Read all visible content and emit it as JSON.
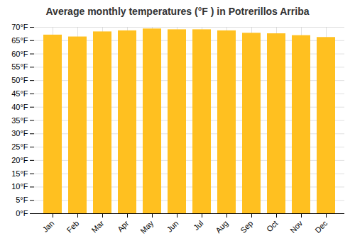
{
  "chart_data": {
    "type": "bar",
    "title": "Average monthly temperatures (°F ) in Potrerillos Arriba",
    "categories": [
      "Jan",
      "Feb",
      "Mar",
      "Apr",
      "May",
      "Jun",
      "Jul",
      "Aug",
      "Sep",
      "Oct",
      "Nov",
      "Dec"
    ],
    "values": [
      67.1,
      66.4,
      68.3,
      68.7,
      69.4,
      69.1,
      69.1,
      68.7,
      67.8,
      67.6,
      66.9,
      66.2
    ],
    "color": "#FFC020",
    "ylim": [
      0,
      70
    ],
    "yticks": [
      {
        "value": 0,
        "label": "0°F"
      },
      {
        "value": 5,
        "label": "5°F"
      },
      {
        "value": 10,
        "label": "10°F"
      },
      {
        "value": 15,
        "label": "15°F"
      },
      {
        "value": 20,
        "label": "20°F"
      },
      {
        "value": 25,
        "label": "25°F"
      },
      {
        "value": 30,
        "label": "30°F"
      },
      {
        "value": 35,
        "label": "35°F"
      },
      {
        "value": 40,
        "label": "40°F"
      },
      {
        "value": 45,
        "label": "45°F"
      },
      {
        "value": 50,
        "label": "50°F"
      },
      {
        "value": 55,
        "label": "55°F"
      },
      {
        "value": 60,
        "label": "60°F"
      },
      {
        "value": 65,
        "label": "65°F"
      },
      {
        "value": 70,
        "label": "70°F"
      }
    ],
    "grid": true
  }
}
